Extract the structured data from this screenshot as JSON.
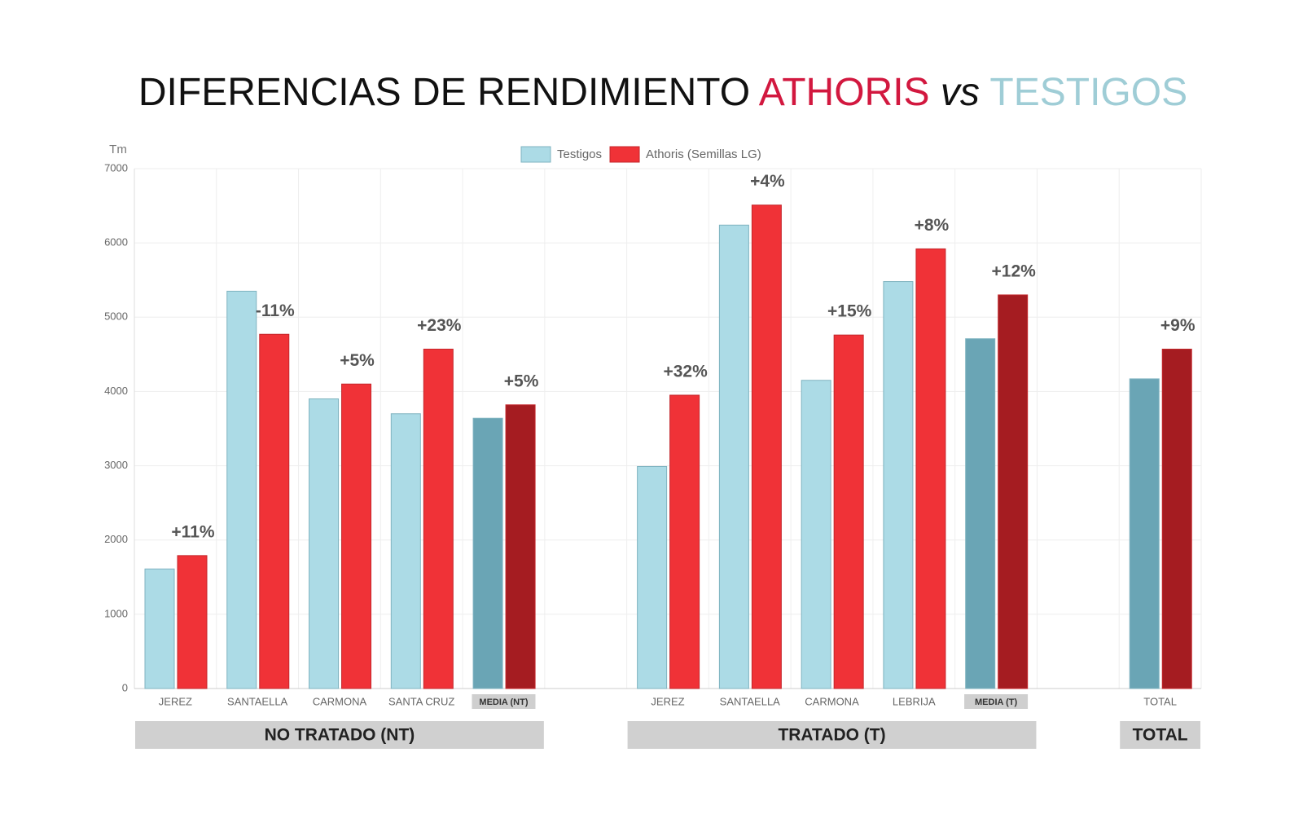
{
  "chart_data": {
    "type": "bar",
    "title_parts": [
      {
        "text": "DIFERENCIAS DE RENDIMIENTO",
        "color": "#111111"
      },
      {
        "text": "ATHORIS",
        "color": "#d2183f"
      },
      {
        "text": "vs",
        "color": "#111111",
        "italic": true
      },
      {
        "text": "TESTIGOS",
        "color": "#9fcdd6"
      }
    ],
    "y_label": "Tm",
    "categories": [
      "JEREZ",
      "SANTAELLA",
      "CARMONA",
      "SANTA CRUZ",
      "MEDIA (NT)",
      null,
      "JEREZ",
      "SANTAELLA",
      "CARMONA",
      "LEBRIJA",
      "MEDIA (T)",
      null,
      "TOTAL"
    ],
    "highlight_labels": [
      4,
      10
    ],
    "series": [
      {
        "name": "Testigos",
        "color": "#acdbe6",
        "colors": [
          "#acdbe6",
          "#acdbe6",
          "#acdbe6",
          "#acdbe6",
          "#6aa5b5",
          null,
          "#acdbe6",
          "#acdbe6",
          "#acdbe6",
          "#acdbe6",
          "#6aa5b5",
          null,
          "#6aa5b5"
        ],
        "values": [
          1610,
          5350,
          3900,
          3700,
          3640,
          null,
          2990,
          6240,
          4150,
          5480,
          4710,
          null,
          4170
        ]
      },
      {
        "name": "Athoris (Semillas LG)",
        "color": "#f03237",
        "colors": [
          "#f03237",
          "#f03237",
          "#f03237",
          "#f03237",
          "#a51c21",
          null,
          "#f03237",
          "#f03237",
          "#f03237",
          "#f03237",
          "#a51c21",
          null,
          "#a51c21"
        ],
        "values": [
          1790,
          4770,
          4100,
          4570,
          3820,
          null,
          3950,
          6510,
          4760,
          5920,
          5300,
          null,
          4570
        ]
      }
    ],
    "annotations": [
      "+11%",
      "-11%",
      "+5%",
      "+23%",
      "+5%",
      null,
      "+32%",
      "+4%",
      "+15%",
      "+8%",
      "+12%",
      null,
      "+9%"
    ],
    "groups": [
      {
        "label": "NO TRATADO (NT)",
        "from": 0,
        "to": 4
      },
      {
        "label": "TRATADO (T)",
        "from": 6,
        "to": 10
      },
      {
        "label": "TOTAL",
        "from": 12,
        "to": 12
      }
    ],
    "ylim": [
      0,
      7000
    ],
    "yticks": [
      0,
      1000,
      2000,
      3000,
      4000,
      5000,
      6000,
      7000
    ],
    "grid": true,
    "legend": "top"
  }
}
